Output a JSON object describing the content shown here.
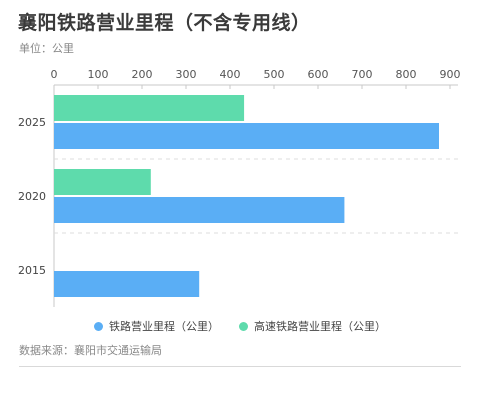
{
  "title": "襄阳铁路营业里程（不含专用线）",
  "unit_label": "单位：公里",
  "source": "数据来源：襄阳市交通运输局",
  "colors": {
    "railway": "#5aaef5",
    "highspeed": "#5edbac"
  },
  "chart_data": {
    "type": "bar",
    "orientation": "horizontal",
    "categories": [
      "2025",
      "2020",
      "2015"
    ],
    "series": [
      {
        "name": "铁路营业里程（公里）",
        "values": [
          875,
          660,
          330
        ]
      },
      {
        "name": "高速铁路营业里程（公里）",
        "values": [
          432,
          220,
          0
        ]
      }
    ],
    "xlim": [
      0,
      900
    ],
    "xticks": [
      "0",
      "100",
      "200",
      "300",
      "400",
      "500",
      "600",
      "700",
      "800",
      "900"
    ],
    "legend_position": "bottom",
    "grid": false
  }
}
